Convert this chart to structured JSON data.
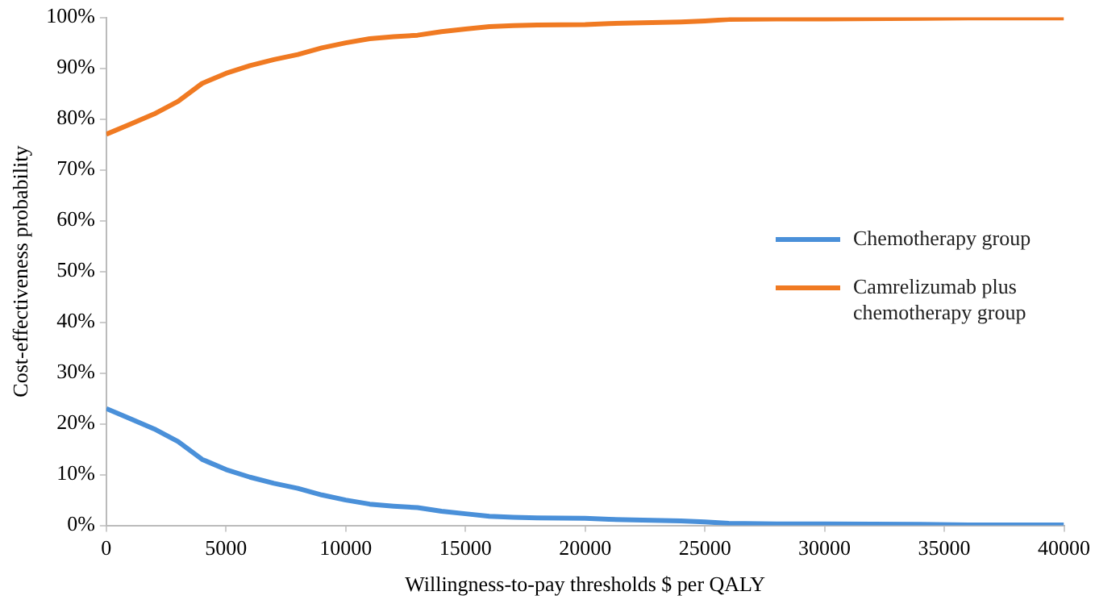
{
  "chart_data": {
    "type": "line",
    "xlabel": "Willingness-to-pay thresholds $ per QALY",
    "ylabel": "Cost-effectiveness probability",
    "x": [
      0,
      1000,
      2000,
      3000,
      4000,
      5000,
      6000,
      7000,
      8000,
      9000,
      10000,
      11000,
      12000,
      13000,
      14000,
      15000,
      16000,
      17000,
      18000,
      20000,
      21000,
      22000,
      24000,
      25000,
      26000,
      28000,
      30000,
      34000,
      36000,
      40000
    ],
    "series": [
      {
        "name": "Chemotherapy group",
        "color": "#4a90d9",
        "values": [
          23,
          21,
          19,
          16.5,
          13,
          11,
          9.5,
          8.3,
          7.3,
          6,
          5,
          4.2,
          3.8,
          3.5,
          2.8,
          2.3,
          1.8,
          1.6,
          1.5,
          1.4,
          1.2,
          1.1,
          0.9,
          0.7,
          0.4,
          0.3,
          0.3,
          0.2,
          0.1,
          0.1
        ]
      },
      {
        "name": "Camrelizumab plus chemotherapy group",
        "color": "#f07a22",
        "values": [
          77,
          79,
          81,
          83.5,
          87,
          89,
          90.5,
          91.7,
          92.7,
          94,
          95,
          95.8,
          96.2,
          96.5,
          97.2,
          97.7,
          98.2,
          98.4,
          98.5,
          98.6,
          98.8,
          98.9,
          99.1,
          99.3,
          99.6,
          99.7,
          99.7,
          99.8,
          99.9,
          99.9
        ]
      }
    ],
    "xlim": [
      0,
      40000
    ],
    "xticks": [
      0,
      5000,
      10000,
      15000,
      20000,
      25000,
      30000,
      35000,
      40000
    ],
    "ylim": [
      0,
      100
    ],
    "yticks": [
      {
        "value": 0,
        "label": "0%"
      },
      {
        "value": 10,
        "label": "10%"
      },
      {
        "value": 20,
        "label": "20%"
      },
      {
        "value": 30,
        "label": "30%"
      },
      {
        "value": 40,
        "label": "40%"
      },
      {
        "value": 50,
        "label": "50%"
      },
      {
        "value": 60,
        "label": "60%"
      },
      {
        "value": 70,
        "label": "70%"
      },
      {
        "value": 80,
        "label": "80%"
      },
      {
        "value": 90,
        "label": "90%"
      },
      {
        "value": 100,
        "label": "100%"
      }
    ],
    "grid": false,
    "legend": "right",
    "marker": "none",
    "line_style": "solid"
  }
}
